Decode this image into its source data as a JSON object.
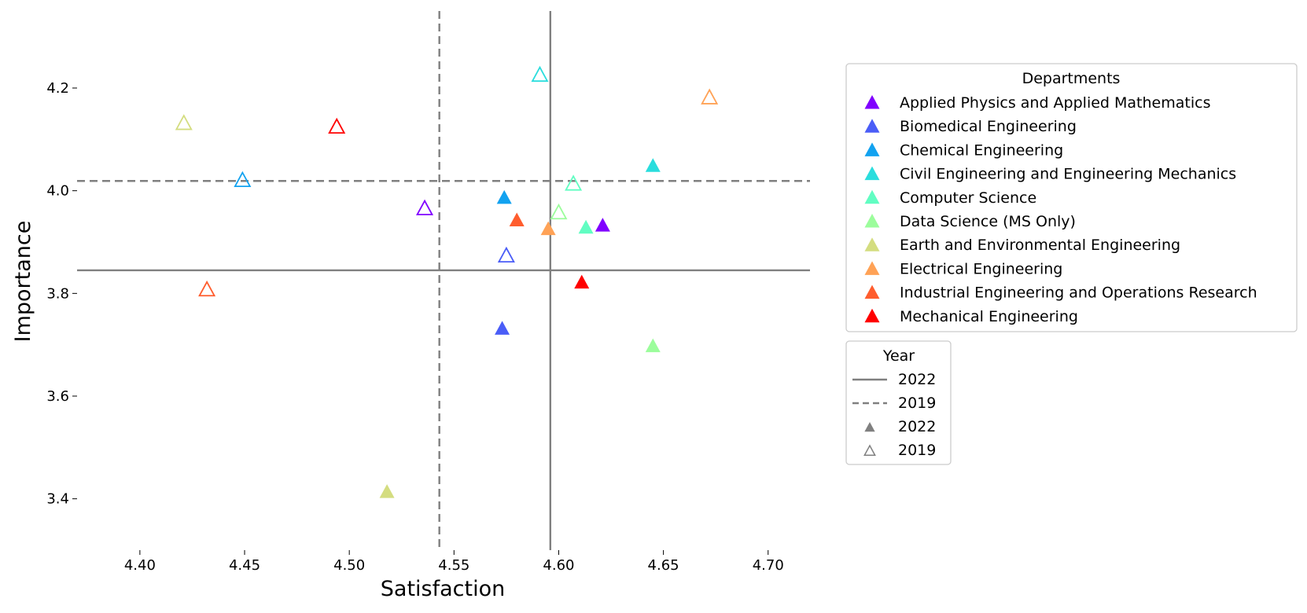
{
  "chart_data": {
    "type": "scatter",
    "xlabel": "Satisfaction",
    "ylabel": "Importance",
    "xlim": [
      4.37,
      4.72
    ],
    "ylim": [
      3.3,
      4.35
    ],
    "xticks": [
      "4.40",
      "4.45",
      "4.50",
      "4.55",
      "4.60",
      "4.65",
      "4.70"
    ],
    "yticks": [
      "3.4",
      "3.6",
      "3.8",
      "4.0",
      "4.2"
    ],
    "grid": false,
    "reference_lines": [
      {
        "year": "2022",
        "style": "solid",
        "x": 4.596,
        "y": 3.845
      },
      {
        "year": "2019",
        "style": "dashed",
        "x": 4.543,
        "y": 4.019
      }
    ],
    "legend_departments": {
      "title": "Departments",
      "placement": "outside right",
      "entries": [
        {
          "name": "Applied Physics and Applied Mathematics",
          "color": "#8000ff"
        },
        {
          "name": "Biomedical Engineering",
          "color": "#4a5df7"
        },
        {
          "name": "Chemical Engineering",
          "color": "#12a2f0"
        },
        {
          "name": "Civil Engineering and Engineering Mechanics",
          "color": "#2adddd"
        },
        {
          "name": "Computer Science",
          "color": "#61fdc2"
        },
        {
          "name": "Data Science (MS Only)",
          "color": "#9cfd9c"
        },
        {
          "name": "Earth and Environmental Engineering",
          "color": "#d4dd80"
        },
        {
          "name": "Electrical Engineering",
          "color": "#ffa256"
        },
        {
          "name": "Industrial Engineering and Operations Research",
          "color": "#ff5d2e"
        },
        {
          "name": "Mechanical Engineering",
          "color": "#ff0000"
        }
      ]
    },
    "legend_year": {
      "title": "Year",
      "entries": [
        {
          "label": "2022",
          "kind": "solid-line"
        },
        {
          "label": "2019",
          "kind": "dashed-line"
        },
        {
          "label": "2022",
          "kind": "filled-triangle"
        },
        {
          "label": "2019",
          "kind": "hollow-triangle"
        }
      ]
    },
    "series": [
      {
        "name": "Applied Physics and Applied Mathematics",
        "points": [
          {
            "year": "2022",
            "x": 4.621,
            "y": 3.932
          },
          {
            "year": "2019",
            "x": 4.536,
            "y": 3.965
          }
        ]
      },
      {
        "name": "Biomedical Engineering",
        "points": [
          {
            "year": "2022",
            "x": 4.573,
            "y": 3.731
          },
          {
            "year": "2019",
            "x": 4.575,
            "y": 3.873
          }
        ]
      },
      {
        "name": "Chemical Engineering",
        "points": [
          {
            "year": "2022",
            "x": 4.574,
            "y": 3.986
          },
          {
            "year": "2019",
            "x": 4.449,
            "y": 4.02
          }
        ]
      },
      {
        "name": "Civil Engineering and Engineering Mechanics",
        "points": [
          {
            "year": "2022",
            "x": 4.645,
            "y": 4.048
          },
          {
            "year": "2019",
            "x": 4.591,
            "y": 4.225
          }
        ]
      },
      {
        "name": "Computer Science",
        "points": [
          {
            "year": "2022",
            "x": 4.613,
            "y": 3.928
          },
          {
            "year": "2019",
            "x": 4.607,
            "y": 4.013
          }
        ]
      },
      {
        "name": "Data Science (MS Only)",
        "points": [
          {
            "year": "2022",
            "x": 4.645,
            "y": 3.697
          },
          {
            "year": "2019",
            "x": 4.6,
            "y": 3.957
          }
        ]
      },
      {
        "name": "Earth and Environmental Engineering",
        "points": [
          {
            "year": "2022",
            "x": 4.518,
            "y": 3.413
          },
          {
            "year": "2019",
            "x": 4.421,
            "y": 4.131
          }
        ]
      },
      {
        "name": "Electrical Engineering",
        "points": [
          {
            "year": "2022",
            "x": 4.595,
            "y": 3.925
          },
          {
            "year": "2019",
            "x": 4.672,
            "y": 4.181
          }
        ]
      },
      {
        "name": "Industrial Engineering and Operations Research",
        "points": [
          {
            "year": "2022",
            "x": 4.58,
            "y": 3.942
          },
          {
            "year": "2019",
            "x": 4.432,
            "y": 3.807
          }
        ]
      },
      {
        "name": "Mechanical Engineering",
        "points": [
          {
            "year": "2022",
            "x": 4.611,
            "y": 3.821
          },
          {
            "year": "2019",
            "x": 4.494,
            "y": 4.124
          }
        ]
      }
    ]
  }
}
